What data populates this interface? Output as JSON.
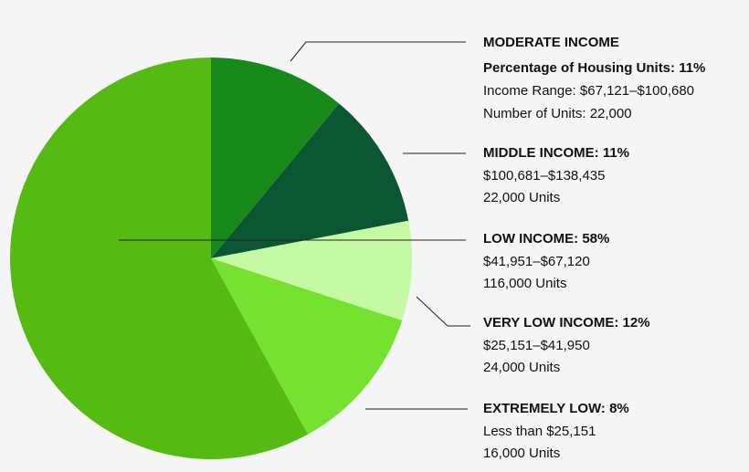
{
  "chart_data": {
    "type": "pie",
    "values": [
      11,
      11,
      8,
      12,
      58
    ],
    "colors": [
      "#178a1a",
      "#0b5733",
      "#c6f9a4",
      "#74e22e",
      "#55bb12"
    ],
    "annotations": [
      {
        "lines": [
          "MODERATE INCOME",
          "Percentage of Housing Units: 11%",
          "Income Range: $67,121–$100,680",
          "Number of Units: 22,000"
        ]
      },
      {
        "lines": [
          "MIDDLE INCOME: 11%",
          "$100,681–$138,435",
          "22,000 Units"
        ]
      },
      {
        "lines": [
          "LOW INCOME: 58%",
          "$41,951–$67,120",
          "116,000 Units"
        ]
      },
      {
        "lines": [
          "VERY LOW INCOME: 12%",
          "$25,151–$41,950",
          "24,000 Units"
        ]
      },
      {
        "lines": [
          "EXTREMELY LOW: 8%",
          "Less than $25,151",
          "16,000 Units"
        ]
      }
    ]
  }
}
